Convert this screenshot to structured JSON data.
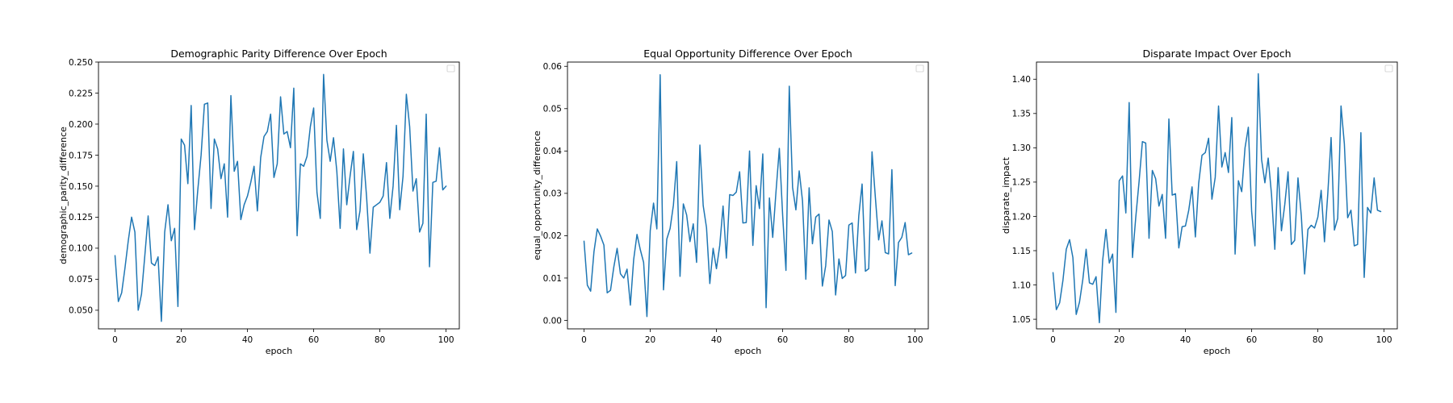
{
  "chart_data": [
    {
      "type": "line",
      "title": "Demographic Parity Difference Over Epoch",
      "xlabel": "epoch",
      "ylabel": "demographic_parity_difference",
      "xlim": [
        -5,
        104
      ],
      "ylim": [
        0.035,
        0.25
      ],
      "xticks": [
        0,
        20,
        40,
        60,
        80,
        100
      ],
      "yticks": [
        0.05,
        0.075,
        0.1,
        0.125,
        0.15,
        0.175,
        0.2,
        0.225,
        0.25
      ],
      "ytick_labels": [
        "0.050",
        "0.075",
        "0.100",
        "0.125",
        "0.150",
        "0.175",
        "0.200",
        "0.225",
        "0.250"
      ],
      "grid": false,
      "legend": "empty box, upper right",
      "color": "#1f77b4",
      "x_start": 0,
      "y": [
        0.094,
        0.057,
        0.064,
        0.084,
        0.106,
        0.125,
        0.113,
        0.05,
        0.063,
        0.094,
        0.126,
        0.088,
        0.086,
        0.093,
        0.041,
        0.113,
        0.135,
        0.106,
        0.116,
        0.053,
        0.188,
        0.183,
        0.152,
        0.215,
        0.115,
        0.147,
        0.175,
        0.216,
        0.217,
        0.132,
        0.188,
        0.18,
        0.156,
        0.168,
        0.125,
        0.223,
        0.162,
        0.17,
        0.123,
        0.135,
        0.142,
        0.153,
        0.166,
        0.13,
        0.173,
        0.19,
        0.194,
        0.208,
        0.157,
        0.168,
        0.222,
        0.192,
        0.194,
        0.181,
        0.229,
        0.11,
        0.168,
        0.166,
        0.174,
        0.198,
        0.213,
        0.145,
        0.124,
        0.24,
        0.187,
        0.17,
        0.189,
        0.162,
        0.116,
        0.18,
        0.135,
        0.158,
        0.178,
        0.115,
        0.13,
        0.176,
        0.141,
        0.096,
        0.133,
        0.135,
        0.137,
        0.142,
        0.169,
        0.124,
        0.15,
        0.199,
        0.131,
        0.158,
        0.224,
        0.198,
        0.146,
        0.156,
        0.113,
        0.12,
        0.208,
        0.085,
        0.153,
        0.154,
        0.181,
        0.147,
        0.15
      ]
    },
    {
      "type": "line",
      "title": "Equal Opportunity Difference Over Epoch",
      "xlabel": "epoch",
      "ylabel": "equal_opportunity_difference",
      "xlim": [
        -5,
        104
      ],
      "ylim": [
        -0.002,
        0.061
      ],
      "xticks": [
        0,
        20,
        40,
        60,
        80,
        100
      ],
      "yticks": [
        0.0,
        0.01,
        0.02,
        0.03,
        0.04,
        0.05,
        0.06
      ],
      "ytick_labels": [
        "0.00",
        "0.01",
        "0.02",
        "0.03",
        "0.04",
        "0.05",
        "0.06"
      ],
      "grid": false,
      "legend": "empty box, upper right",
      "color": "#1f77b4",
      "x_start": 0,
      "y": [
        0.0187,
        0.0083,
        0.0069,
        0.0162,
        0.0216,
        0.0199,
        0.0178,
        0.0065,
        0.0071,
        0.0126,
        0.017,
        0.011,
        0.01,
        0.0121,
        0.0036,
        0.0144,
        0.0203,
        0.0167,
        0.0137,
        0.0009,
        0.0212,
        0.0277,
        0.0216,
        0.058,
        0.0072,
        0.0192,
        0.0217,
        0.0272,
        0.0375,
        0.0104,
        0.0275,
        0.0249,
        0.0186,
        0.0228,
        0.0137,
        0.0414,
        0.0271,
        0.0219,
        0.0087,
        0.017,
        0.0122,
        0.0177,
        0.027,
        0.0147,
        0.0297,
        0.0295,
        0.0303,
        0.0351,
        0.023,
        0.0231,
        0.04,
        0.0177,
        0.0318,
        0.0264,
        0.0393,
        0.003,
        0.0289,
        0.0196,
        0.0305,
        0.0406,
        0.0248,
        0.0118,
        0.0553,
        0.0314,
        0.0261,
        0.0353,
        0.0282,
        0.0097,
        0.0313,
        0.0181,
        0.0244,
        0.0251,
        0.0081,
        0.0129,
        0.0237,
        0.021,
        0.006,
        0.0145,
        0.0099,
        0.0106,
        0.0225,
        0.023,
        0.0112,
        0.0247,
        0.0322,
        0.0116,
        0.0122,
        0.0398,
        0.0291,
        0.019,
        0.0235,
        0.016,
        0.0157,
        0.0356,
        0.0082,
        0.0184,
        0.0196,
        0.0231,
        0.0155,
        0.0159
      ]
    },
    {
      "type": "line",
      "title": "Disparate Impact Over Epoch",
      "xlabel": "epoch",
      "ylabel": "disparate_impact",
      "xlim": [
        -5,
        104
      ],
      "ylim": [
        1.036,
        1.425
      ],
      "xticks": [
        0,
        20,
        40,
        60,
        80,
        100
      ],
      "yticks": [
        1.05,
        1.1,
        1.15,
        1.2,
        1.25,
        1.3,
        1.35,
        1.4
      ],
      "ytick_labels": [
        "1.05",
        "1.10",
        "1.15",
        "1.20",
        "1.25",
        "1.30",
        "1.35",
        "1.40"
      ],
      "grid": false,
      "legend": "empty box, upper right",
      "color": "#1f77b4",
      "x_start": 0,
      "y": [
        1.118,
        1.064,
        1.074,
        1.107,
        1.152,
        1.166,
        1.14,
        1.057,
        1.075,
        1.108,
        1.152,
        1.103,
        1.101,
        1.112,
        1.045,
        1.136,
        1.181,
        1.132,
        1.145,
        1.06,
        1.252,
        1.259,
        1.205,
        1.366,
        1.14,
        1.199,
        1.251,
        1.309,
        1.307,
        1.168,
        1.267,
        1.255,
        1.215,
        1.232,
        1.168,
        1.342,
        1.231,
        1.233,
        1.154,
        1.185,
        1.186,
        1.209,
        1.243,
        1.17,
        1.248,
        1.289,
        1.293,
        1.314,
        1.225,
        1.257,
        1.361,
        1.272,
        1.293,
        1.264,
        1.344,
        1.145,
        1.252,
        1.236,
        1.3,
        1.33,
        1.207,
        1.157,
        1.408,
        1.283,
        1.249,
        1.285,
        1.232,
        1.152,
        1.271,
        1.179,
        1.217,
        1.265,
        1.159,
        1.165,
        1.256,
        1.201,
        1.116,
        1.181,
        1.187,
        1.183,
        1.199,
        1.238,
        1.163,
        1.233,
        1.315,
        1.18,
        1.197,
        1.361,
        1.306,
        1.198,
        1.209,
        1.157,
        1.159,
        1.322,
        1.111,
        1.213,
        1.205,
        1.256,
        1.209,
        1.207
      ]
    }
  ]
}
